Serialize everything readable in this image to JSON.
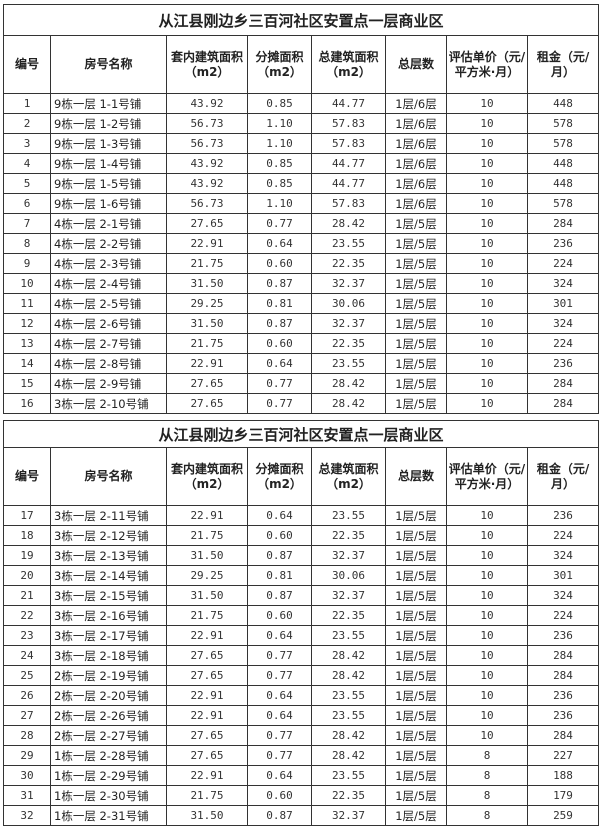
{
  "tables": [
    {
      "title": "从江县刚边乡三百河社区安置点一层商业区",
      "headers": [
        "编号",
        "房号名称",
        "套内建筑面积（m2）",
        "分摊面积（m2）",
        "总建筑面积（m2）",
        "总层数",
        "评估单价（元/平方米·月）",
        "租金（元/月）"
      ],
      "rows": [
        [
          "1",
          "9栋一层 1-1号铺",
          "43.92",
          "0.85",
          "44.77",
          "1层/6层",
          "10",
          "448"
        ],
        [
          "2",
          "9栋一层 1-2号铺",
          "56.73",
          "1.10",
          "57.83",
          "1层/6层",
          "10",
          "578"
        ],
        [
          "3",
          "9栋一层 1-3号铺",
          "56.73",
          "1.10",
          "57.83",
          "1层/6层",
          "10",
          "578"
        ],
        [
          "4",
          "9栋一层 1-4号铺",
          "43.92",
          "0.85",
          "44.77",
          "1层/6层",
          "10",
          "448"
        ],
        [
          "5",
          "9栋一层 1-5号铺",
          "43.92",
          "0.85",
          "44.77",
          "1层/6层",
          "10",
          "448"
        ],
        [
          "6",
          "9栋一层 1-6号铺",
          "56.73",
          "1.10",
          "57.83",
          "1层/6层",
          "10",
          "578"
        ],
        [
          "7",
          "4栋一层 2-1号铺",
          "27.65",
          "0.77",
          "28.42",
          "1层/5层",
          "10",
          "284"
        ],
        [
          "8",
          "4栋一层 2-2号铺",
          "22.91",
          "0.64",
          "23.55",
          "1层/5层",
          "10",
          "236"
        ],
        [
          "9",
          "4栋一层 2-3号铺",
          "21.75",
          "0.60",
          "22.35",
          "1层/5层",
          "10",
          "224"
        ],
        [
          "10",
          "4栋一层 2-4号铺",
          "31.50",
          "0.87",
          "32.37",
          "1层/5层",
          "10",
          "324"
        ],
        [
          "11",
          "4栋一层 2-5号铺",
          "29.25",
          "0.81",
          "30.06",
          "1层/5层",
          "10",
          "301"
        ],
        [
          "12",
          "4栋一层 2-6号铺",
          "31.50",
          "0.87",
          "32.37",
          "1层/5层",
          "10",
          "324"
        ],
        [
          "13",
          "4栋一层 2-7号铺",
          "21.75",
          "0.60",
          "22.35",
          "1层/5层",
          "10",
          "224"
        ],
        [
          "14",
          "4栋一层 2-8号铺",
          "22.91",
          "0.64",
          "23.55",
          "1层/5层",
          "10",
          "236"
        ],
        [
          "15",
          "4栋一层 2-9号铺",
          "27.65",
          "0.77",
          "28.42",
          "1层/5层",
          "10",
          "284"
        ],
        [
          "16",
          "3栋一层 2-10号铺",
          "27.65",
          "0.77",
          "28.42",
          "1层/5层",
          "10",
          "284"
        ]
      ]
    },
    {
      "title": "从江县刚边乡三百河社区安置点一层商业区",
      "headers": [
        "编号",
        "房号名称",
        "套内建筑面积（m2）",
        "分摊面积（m2）",
        "总建筑面积（m2）",
        "总层数",
        "评估单价（元/平方米·月）",
        "租金（元/月）"
      ],
      "rows": [
        [
          "17",
          "3栋一层 2-11号铺",
          "22.91",
          "0.64",
          "23.55",
          "1层/5层",
          "10",
          "236"
        ],
        [
          "18",
          "3栋一层 2-12号铺",
          "21.75",
          "0.60",
          "22.35",
          "1层/5层",
          "10",
          "224"
        ],
        [
          "19",
          "3栋一层 2-13号铺",
          "31.50",
          "0.87",
          "32.37",
          "1层/5层",
          "10",
          "324"
        ],
        [
          "20",
          "3栋一层 2-14号铺",
          "29.25",
          "0.81",
          "30.06",
          "1层/5层",
          "10",
          "301"
        ],
        [
          "21",
          "3栋一层 2-15号铺",
          "31.50",
          "0.87",
          "32.37",
          "1层/5层",
          "10",
          "324"
        ],
        [
          "22",
          "3栋一层 2-16号铺",
          "21.75",
          "0.60",
          "22.35",
          "1层/5层",
          "10",
          "224"
        ],
        [
          "23",
          "3栋一层 2-17号铺",
          "22.91",
          "0.64",
          "23.55",
          "1层/5层",
          "10",
          "236"
        ],
        [
          "24",
          "3栋一层 2-18号铺",
          "27.65",
          "0.77",
          "28.42",
          "1层/5层",
          "10",
          "284"
        ],
        [
          "25",
          "2栋一层 2-19号铺",
          "27.65",
          "0.77",
          "28.42",
          "1层/5层",
          "10",
          "284"
        ],
        [
          "26",
          "2栋一层 2-20号铺",
          "22.91",
          "0.64",
          "23.55",
          "1层/5层",
          "10",
          "236"
        ],
        [
          "27",
          "2栋一层 2-26号铺",
          "22.91",
          "0.64",
          "23.55",
          "1层/5层",
          "10",
          "236"
        ],
        [
          "28",
          "2栋一层 2-27号铺",
          "27.65",
          "0.77",
          "28.42",
          "1层/5层",
          "10",
          "284"
        ],
        [
          "29",
          "1栋一层 2-28号铺",
          "27.65",
          "0.77",
          "28.42",
          "1层/5层",
          "8",
          "227"
        ],
        [
          "30",
          "1栋一层 2-29号铺",
          "22.91",
          "0.64",
          "23.55",
          "1层/5层",
          "8",
          "188"
        ],
        [
          "31",
          "1栋一层 2-30号铺",
          "21.75",
          "0.60",
          "22.35",
          "1层/5层",
          "8",
          "179"
        ],
        [
          "32",
          "1栋一层 2-31号铺",
          "31.50",
          "0.87",
          "32.37",
          "1层/5层",
          "8",
          "259"
        ]
      ]
    }
  ]
}
